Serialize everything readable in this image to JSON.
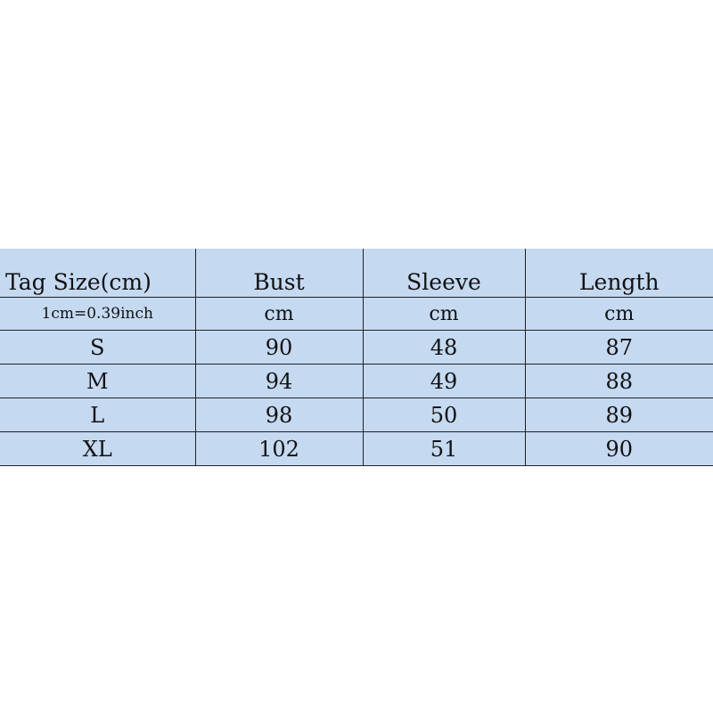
{
  "table": {
    "headers": [
      "Tag Size(cm)",
      "Bust",
      "Sleeve",
      "Length"
    ],
    "units": [
      "1cm=0.39inch",
      "cm",
      "cm",
      "cm"
    ],
    "rows": [
      [
        "S",
        "90",
        "48",
        "87"
      ],
      [
        "M",
        "94",
        "49",
        "88"
      ],
      [
        "L",
        "98",
        "50",
        "89"
      ],
      [
        "XL",
        "102",
        "51",
        "90"
      ]
    ]
  },
  "colors": {
    "cell_background": "#c5d9f1",
    "border": "#222222"
  }
}
